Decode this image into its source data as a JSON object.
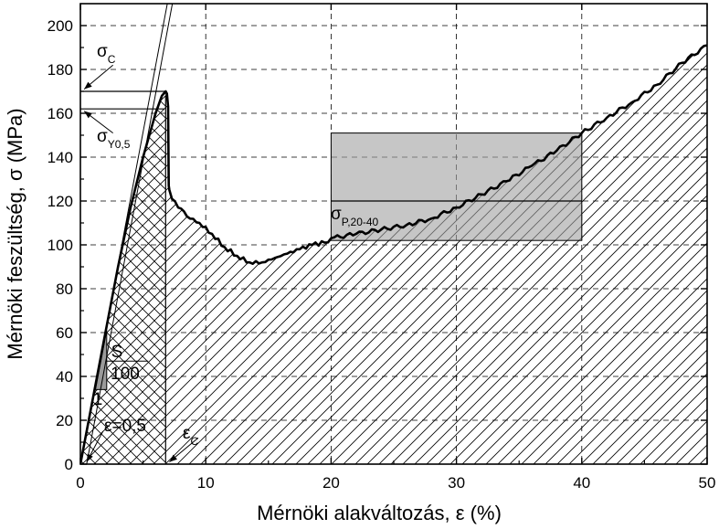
{
  "chart_data": {
    "type": "line",
    "xlabel": "Mérnöki alakváltozás, ε (%)",
    "ylabel": "Mérnöki feszültség, σ (MPa)",
    "xlim": [
      0,
      50
    ],
    "ylim": [
      0,
      210
    ],
    "xticks": [
      "0",
      "10",
      "20",
      "30",
      "40",
      "50"
    ],
    "yticks": [
      "0",
      "20",
      "40",
      "60",
      "80",
      "100",
      "120",
      "140",
      "160",
      "180",
      "200"
    ],
    "grid": "dashed",
    "series": [
      {
        "x": [
          0,
          1,
          2,
          3,
          4,
          5,
          6,
          6.5,
          6.8,
          6.9,
          7.0,
          7.05,
          7.1,
          7.3,
          7.8,
          8.5,
          9.5,
          10.5,
          11.5,
          12.5,
          13.5,
          14.5,
          15.5,
          16.5,
          17.5,
          18.5,
          19.5,
          20,
          22,
          24,
          26,
          28,
          30,
          32,
          34,
          36,
          38,
          40,
          42,
          44,
          46,
          48,
          50
        ],
        "y": [
          0,
          30,
          60,
          90,
          117,
          140,
          160,
          168,
          170,
          169,
          163,
          127,
          125,
          121,
          117,
          113,
          110,
          105,
          99,
          95,
          92,
          92,
          94,
          96,
          98,
          100,
          101,
          103,
          105,
          107,
          109,
          112,
          117,
          123,
          129,
          136,
          143,
          151,
          158,
          165,
          173,
          183,
          191
        ]
      }
    ],
    "annotations": {
      "sigma_c": {
        "symbol": "σ",
        "sub": "C",
        "value": 170
      },
      "sigma_y": {
        "symbol": "σ",
        "sub": "Y0,5",
        "value": 162
      },
      "sigma_p": {
        "symbol": "σ",
        "sub": "P,20-40",
        "value": 120,
        "box": {
          "x": [
            20,
            40
          ],
          "y": [
            102,
            151
          ]
        }
      },
      "slope_s": "S",
      "slope_100": "100",
      "slope_1": "1",
      "eps_05": "ε=0,5",
      "eps_c": {
        "symbol": "ε",
        "sub": "C",
        "value": 6.8
      }
    }
  }
}
